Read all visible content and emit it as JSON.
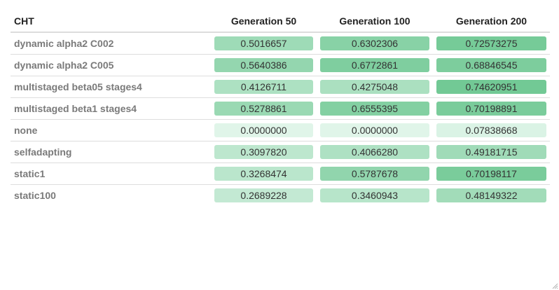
{
  "table": {
    "columns": [
      "CHT",
      "Generation 50",
      "Generation 100",
      "Generation 200"
    ],
    "rows": [
      {
        "name": "dynamic alpha2 C002",
        "values": [
          "0.5016657",
          "0.6302306",
          "0.72573275"
        ],
        "levels": [
          0.5016657,
          0.6302306,
          0.72573275
        ]
      },
      {
        "name": "dynamic alpha2 C005",
        "values": [
          "0.5640386",
          "0.6772861",
          "0.68846545"
        ],
        "levels": [
          0.5640386,
          0.6772861,
          0.68846545
        ]
      },
      {
        "name": "multistaged beta05 stages4",
        "values": [
          "0.4126711",
          "0.4275048",
          "0.74620951"
        ],
        "levels": [
          0.4126711,
          0.4275048,
          0.74620951
        ]
      },
      {
        "name": "multistaged beta1 stages4",
        "values": [
          "0.5278861",
          "0.6555395",
          "0.70198891"
        ],
        "levels": [
          0.5278861,
          0.6555395,
          0.70198891
        ]
      },
      {
        "name": "none",
        "values": [
          "0.0000000",
          "0.0000000",
          "0.07838668"
        ],
        "levels": [
          0.0,
          0.0,
          0.07838668
        ]
      },
      {
        "name": "selfadapting",
        "values": [
          "0.3097820",
          "0.4066280",
          "0.49181715"
        ],
        "levels": [
          0.309782,
          0.406628,
          0.49181715
        ]
      },
      {
        "name": "static1",
        "values": [
          "0.3268474",
          "0.5787678",
          "0.70198117"
        ],
        "levels": [
          0.3268474,
          0.5787678,
          0.70198117
        ]
      },
      {
        "name": "static100",
        "values": [
          "0.2689228",
          "0.3460943",
          "0.48149322"
        ],
        "levels": [
          0.2689228,
          0.3460943,
          0.48149322
        ]
      }
    ]
  },
  "colors": {
    "cell_low": "#e0f5e9",
    "cell_high": "#72c995",
    "header_rule": "#dddddd",
    "row_rule": "#dddddd",
    "row_label": "#7a7a7a",
    "header_text": "#222222"
  },
  "icons": {
    "resize_grip": "resize-grip-icon"
  }
}
